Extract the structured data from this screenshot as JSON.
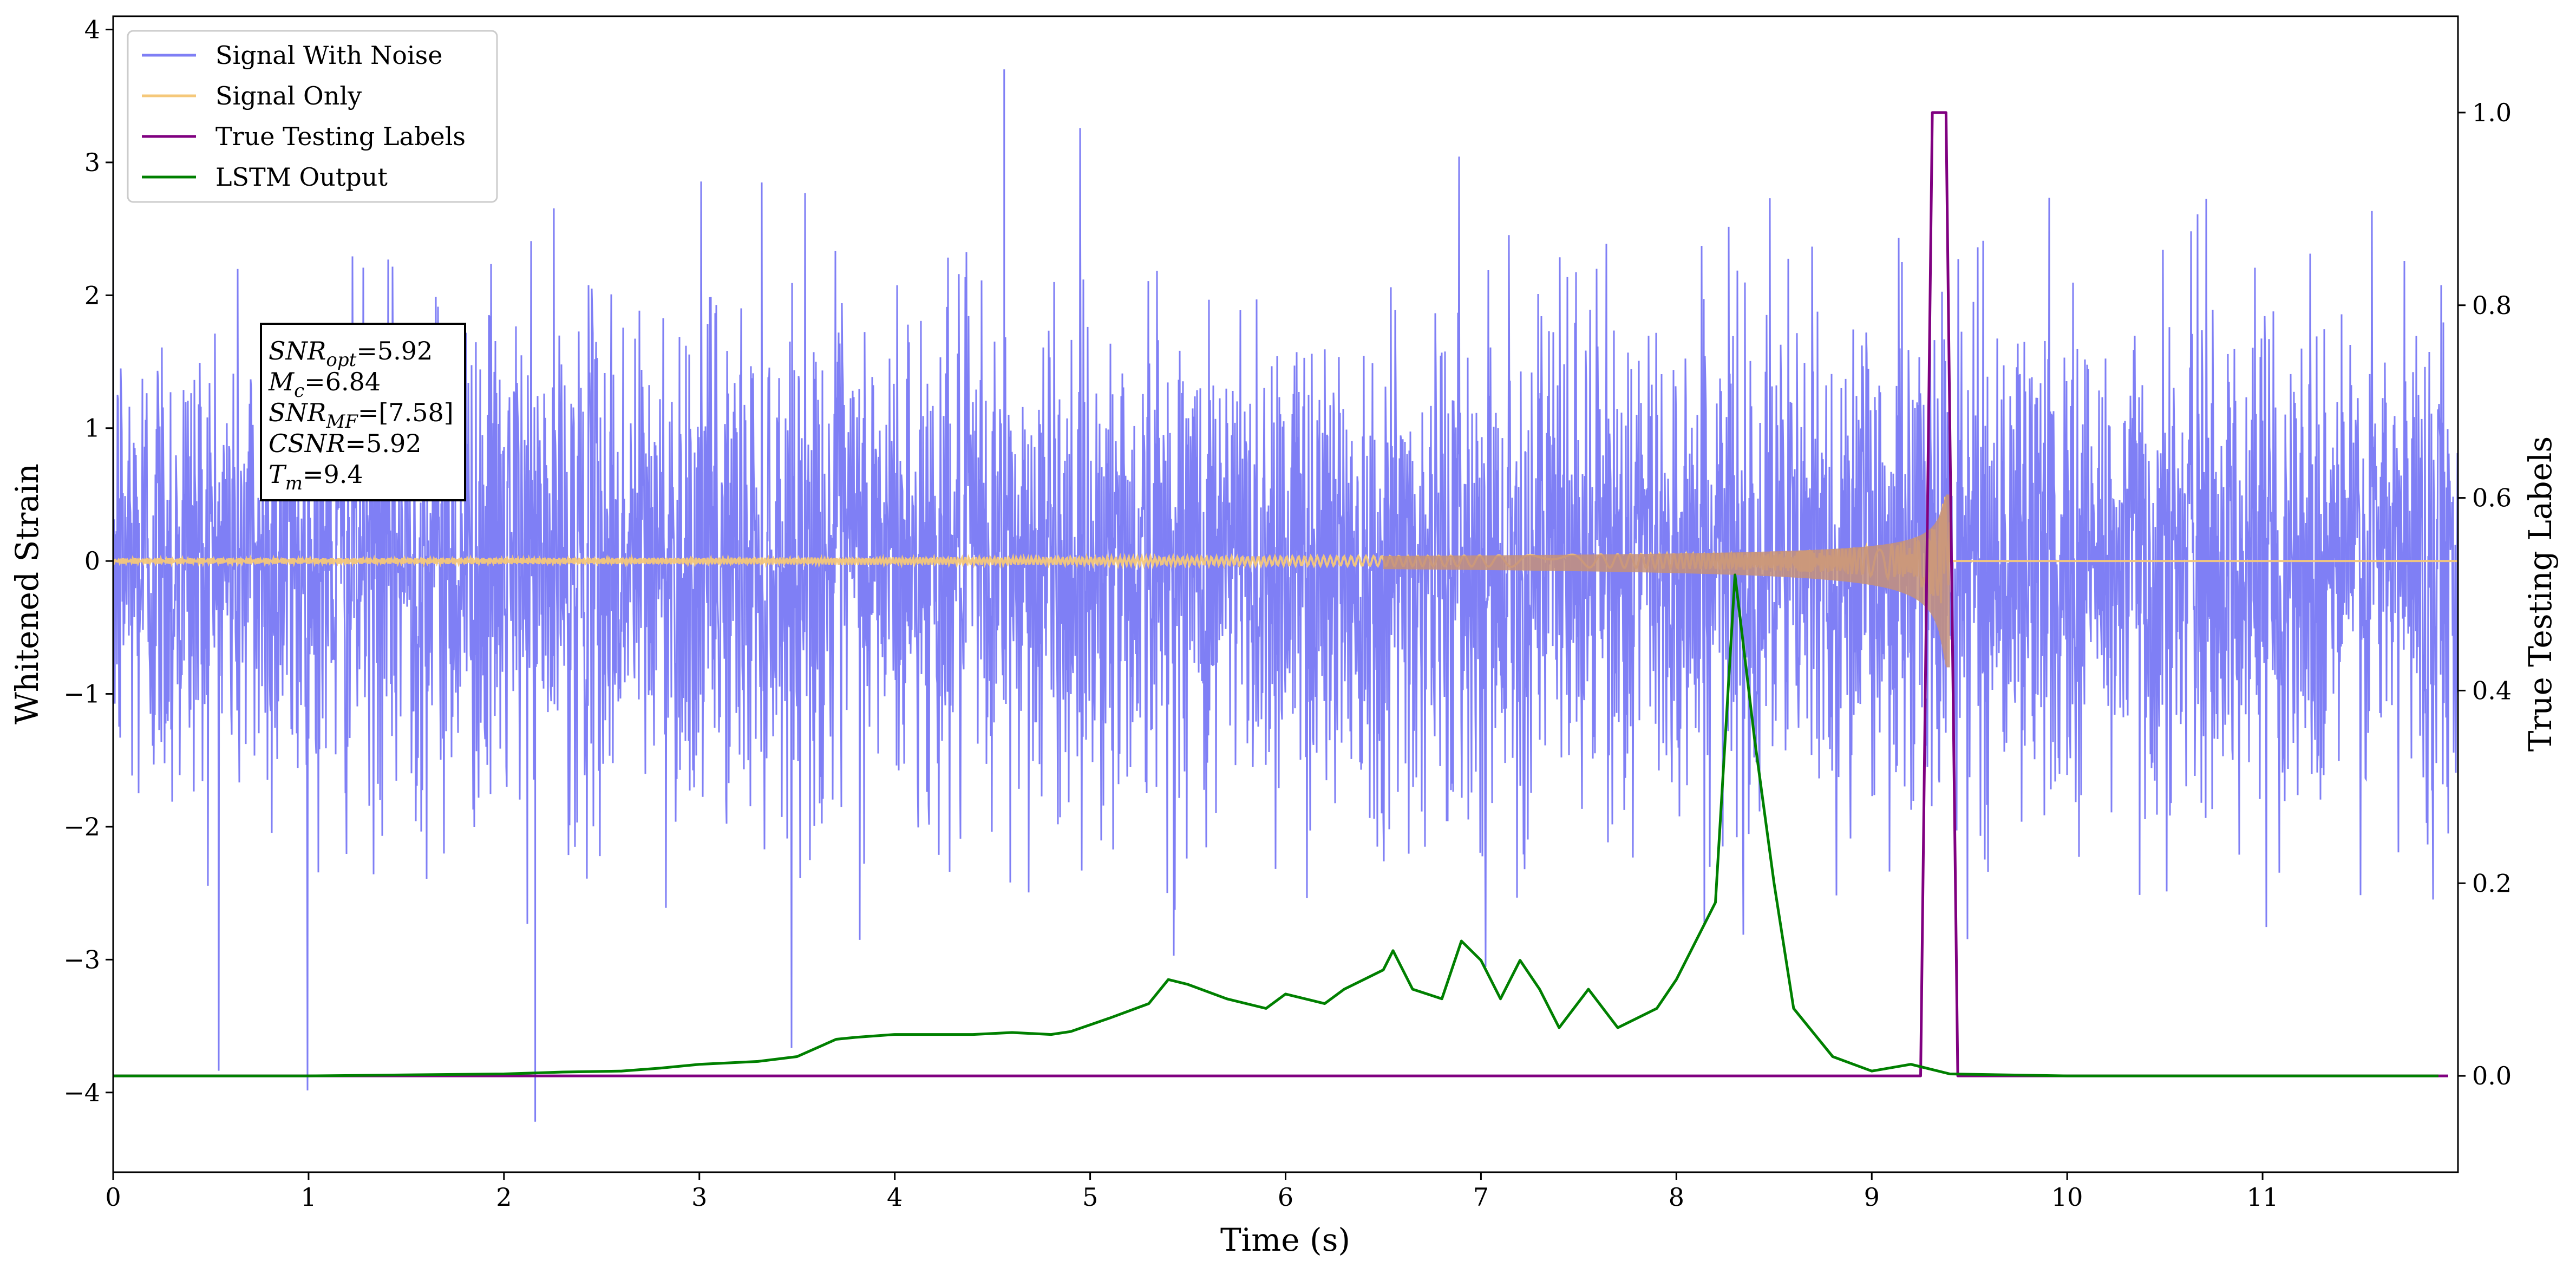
{
  "chart_data": {
    "type": "line",
    "title": "",
    "xlabel": "Time (s)",
    "ylabel": "Whitened Strain",
    "y2label": "True Testing Labels",
    "xlim": [
      0,
      12
    ],
    "ylim": [
      -4.6,
      4.1
    ],
    "y2lim": [
      -0.1,
      1.1
    ],
    "x_ticks": [
      0,
      1,
      2,
      3,
      4,
      5,
      6,
      7,
      8,
      9,
      10,
      11
    ],
    "y_ticks": [
      -4,
      -3,
      -2,
      -1,
      0,
      1,
      2,
      3,
      4
    ],
    "y_tick_labels": [
      "−4",
      "−3",
      "−2",
      "−1",
      "0",
      "1",
      "2",
      "3",
      "4"
    ],
    "y2_ticks": [
      0.0,
      0.2,
      0.4,
      0.6,
      0.8,
      1.0
    ],
    "y2_tick_labels": [
      "0.0",
      "0.2",
      "0.4",
      "0.6",
      "0.8",
      "1.0"
    ],
    "grid": false,
    "legend_position": "top-left",
    "series": [
      {
        "name": "Signal With Noise",
        "color": "#7f7ff5",
        "axis": "left",
        "description_values": {
          "typical_std": 1.0,
          "min": -4.22,
          "max": 3.7,
          "x_range": [
            0,
            12
          ]
        }
      },
      {
        "name": "Signal Only",
        "color": "#f5c87a",
        "axis": "left",
        "chirp": {
          "start_amplitude": 0.02,
          "peak_amplitude": 0.5,
          "merger_time": 9.4
        }
      },
      {
        "name": "True Testing Labels",
        "color": "#800080",
        "axis": "right",
        "x": [
          0,
          9.25,
          9.31,
          9.38,
          9.44,
          11.95
        ],
        "y": [
          0,
          0,
          1,
          1,
          0,
          0
        ]
      },
      {
        "name": "LSTM Output",
        "color": "#008000",
        "axis": "right",
        "x": [
          0,
          1.0,
          1.5,
          2.0,
          2.3,
          2.6,
          2.8,
          3.0,
          3.3,
          3.5,
          3.7,
          3.8,
          4.0,
          4.2,
          4.4,
          4.6,
          4.8,
          4.9,
          5.1,
          5.3,
          5.4,
          5.5,
          5.7,
          5.9,
          6.0,
          6.2,
          6.3,
          6.4,
          6.5,
          6.55,
          6.65,
          6.8,
          6.9,
          7.0,
          7.1,
          7.2,
          7.3,
          7.4,
          7.55,
          7.7,
          7.9,
          8.0,
          8.2,
          8.3,
          8.4,
          8.5,
          8.6,
          8.8,
          9.0,
          9.2,
          9.4,
          10.0,
          11.0,
          11.9
        ],
        "y": [
          0,
          0,
          0.001,
          0.002,
          0.004,
          0.005,
          0.008,
          0.012,
          0.015,
          0.02,
          0.038,
          0.04,
          0.043,
          0.043,
          0.043,
          0.045,
          0.043,
          0.046,
          0.06,
          0.075,
          0.1,
          0.095,
          0.08,
          0.07,
          0.085,
          0.075,
          0.09,
          0.1,
          0.11,
          0.13,
          0.09,
          0.08,
          0.14,
          0.12,
          0.08,
          0.12,
          0.09,
          0.05,
          0.09,
          0.05,
          0.07,
          0.1,
          0.18,
          0.52,
          0.35,
          0.2,
          0.07,
          0.02,
          0.005,
          0.012,
          0.002,
          0,
          0,
          0
        ]
      }
    ],
    "info_box": {
      "lines": [
        {
          "main": "SNR",
          "sub": "opt",
          "value": "=5.92"
        },
        {
          "main": "M",
          "sub": "c",
          "value": "=6.84"
        },
        {
          "main": "SNR",
          "sub": "MF",
          "value": "=[7.58]"
        },
        {
          "main": "CSNR",
          "sub": "",
          "value": "=5.92"
        },
        {
          "main": "T",
          "sub": "m",
          "value": "=9.4"
        }
      ]
    }
  }
}
